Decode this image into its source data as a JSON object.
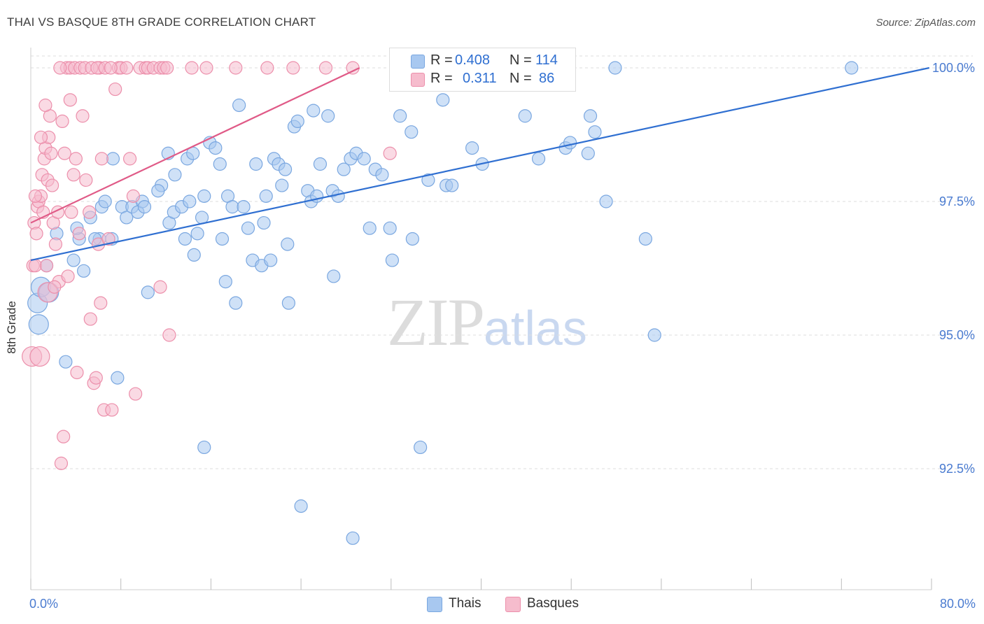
{
  "title": "THAI VS BASQUE 8TH GRADE CORRELATION CHART",
  "source": "Source: ZipAtlas.com",
  "watermark": {
    "zip": "ZIP",
    "atlas": "atlas"
  },
  "legend": {
    "r_label": "R =",
    "n_label": "N =",
    "rows": [
      {
        "name": "Thais",
        "r": "0.408",
        "n": "114",
        "color": "#a8c8f0",
        "border": "#7aa7e0"
      },
      {
        "name": "Basques",
        "r": "0.311",
        "n": "86",
        "color": "#f6bccd",
        "border": "#ec8fab"
      }
    ]
  },
  "chart_data": {
    "type": "scatter",
    "title": "THAI VS BASQUE 8TH GRADE CORRELATION CHART",
    "xlabel": "",
    "ylabel": "8th Grade",
    "xlim": [
      0,
      80
    ],
    "ylim": [
      90.1,
      100.3
    ],
    "x_tick_labels": [
      "0.0%",
      "80.0%"
    ],
    "y_ticks": [
      92.5,
      95.0,
      97.5,
      100.0
    ],
    "y_tick_labels": [
      "92.5%",
      "95.0%",
      "97.5%",
      "100.0%"
    ],
    "grid": true,
    "legend_position": "top-center",
    "series": [
      {
        "name": "Thais",
        "color": "#7aa7e0",
        "fill": "#a8c8f0",
        "trend": {
          "x0": 0,
          "y0": 96.4,
          "x1": 79.8,
          "y1": 100.0,
          "color": "#2f6fd1"
        },
        "points": [
          [
            0.6,
            95.6
          ],
          [
            0.7,
            95.2
          ],
          [
            0.9,
            95.9
          ],
          [
            1.6,
            95.8
          ],
          [
            1.4,
            96.3
          ],
          [
            3.1,
            94.5
          ],
          [
            3.8,
            96.4
          ],
          [
            2.3,
            96.9
          ],
          [
            4.3,
            96.8
          ],
          [
            4.7,
            96.2
          ],
          [
            4.1,
            97.0
          ],
          [
            5.3,
            97.2
          ],
          [
            6.1,
            96.8
          ],
          [
            5.7,
            96.8
          ],
          [
            6.3,
            97.4
          ],
          [
            6.6,
            97.5
          ],
          [
            7.2,
            96.8
          ],
          [
            7.3,
            98.3
          ],
          [
            8.1,
            97.4
          ],
          [
            8.5,
            97.2
          ],
          [
            9.0,
            97.4
          ],
          [
            9.5,
            97.3
          ],
          [
            9.9,
            97.5
          ],
          [
            10.1,
            97.4
          ],
          [
            10.4,
            95.8
          ],
          [
            12.2,
            98.4
          ],
          [
            11.6,
            97.8
          ],
          [
            11.3,
            97.7
          ],
          [
            12.3,
            97.1
          ],
          [
            12.8,
            98.0
          ],
          [
            12.7,
            97.3
          ],
          [
            13.4,
            97.4
          ],
          [
            13.7,
            96.8
          ],
          [
            13.9,
            98.3
          ],
          [
            14.4,
            98.4
          ],
          [
            14.1,
            97.5
          ],
          [
            14.5,
            96.5
          ],
          [
            14.8,
            96.9
          ],
          [
            15.2,
            97.2
          ],
          [
            15.4,
            97.6
          ],
          [
            15.9,
            98.6
          ],
          [
            16.4,
            98.5
          ],
          [
            16.8,
            98.2
          ],
          [
            17.0,
            96.8
          ],
          [
            17.3,
            96.0
          ],
          [
            17.5,
            97.6
          ],
          [
            17.9,
            97.4
          ],
          [
            18.2,
            95.6
          ],
          [
            18.5,
            99.3
          ],
          [
            18.9,
            97.4
          ],
          [
            19.3,
            97.0
          ],
          [
            19.7,
            96.4
          ],
          [
            20.0,
            98.2
          ],
          [
            20.5,
            96.3
          ],
          [
            20.7,
            97.1
          ],
          [
            20.9,
            97.6
          ],
          [
            21.3,
            96.4
          ],
          [
            21.6,
            98.3
          ],
          [
            22.0,
            98.2
          ],
          [
            22.3,
            97.8
          ],
          [
            22.6,
            98.1
          ],
          [
            22.8,
            96.7
          ],
          [
            22.9,
            95.6
          ],
          [
            23.4,
            98.9
          ],
          [
            23.7,
            99.0
          ],
          [
            24.6,
            97.7
          ],
          [
            24.9,
            97.5
          ],
          [
            25.1,
            99.2
          ],
          [
            25.4,
            97.6
          ],
          [
            25.7,
            98.2
          ],
          [
            26.4,
            99.1
          ],
          [
            26.8,
            97.7
          ],
          [
            26.9,
            96.1
          ],
          [
            27.3,
            97.6
          ],
          [
            27.8,
            98.1
          ],
          [
            28.4,
            98.3
          ],
          [
            28.9,
            98.4
          ],
          [
            29.6,
            98.3
          ],
          [
            30.1,
            97.0
          ],
          [
            30.6,
            98.1
          ],
          [
            31.2,
            98.0
          ],
          [
            31.9,
            97.0
          ],
          [
            32.1,
            96.4
          ],
          [
            32.8,
            99.1
          ],
          [
            33.8,
            98.8
          ],
          [
            33.4,
            100.0
          ],
          [
            33.9,
            96.8
          ],
          [
            34.6,
            92.9
          ],
          [
            35.3,
            97.9
          ],
          [
            36.2,
            100.0
          ],
          [
            36.6,
            99.4
          ],
          [
            36.9,
            97.8
          ],
          [
            37.4,
            97.8
          ],
          [
            38.4,
            100.0
          ],
          [
            39.2,
            98.5
          ],
          [
            39.6,
            100.0
          ],
          [
            40.1,
            98.2
          ],
          [
            41.4,
            100.0
          ],
          [
            43.9,
            99.1
          ],
          [
            45.1,
            98.3
          ],
          [
            47.5,
            98.5
          ],
          [
            47.9,
            98.6
          ],
          [
            49.7,
            99.1
          ],
          [
            49.5,
            98.4
          ],
          [
            50.1,
            98.8
          ],
          [
            51.9,
            100.0
          ],
          [
            51.1,
            97.5
          ],
          [
            54.6,
            96.8
          ],
          [
            55.4,
            95.0
          ],
          [
            72.9,
            100.0
          ],
          [
            15.4,
            92.9
          ],
          [
            24.0,
            91.8
          ],
          [
            28.6,
            91.2
          ],
          [
            7.7,
            94.2
          ]
        ]
      },
      {
        "name": "Basques",
        "color": "#ec8fab",
        "fill": "#f6bccd",
        "trend": {
          "x0": 0,
          "y0": 97.1,
          "x1": 29.2,
          "y1": 100.0,
          "color": "#e05a87"
        },
        "points": [
          [
            0.2,
            96.3
          ],
          [
            0.4,
            96.3
          ],
          [
            0.3,
            97.1
          ],
          [
            0.5,
            96.9
          ],
          [
            0.6,
            97.4
          ],
          [
            0.7,
            97.5
          ],
          [
            0.9,
            97.6
          ],
          [
            1.1,
            97.3
          ],
          [
            1.0,
            98.0
          ],
          [
            1.2,
            98.3
          ],
          [
            1.3,
            98.5
          ],
          [
            1.5,
            97.9
          ],
          [
            1.6,
            98.7
          ],
          [
            1.8,
            98.4
          ],
          [
            1.9,
            97.8
          ],
          [
            1.7,
            99.1
          ],
          [
            1.4,
            96.3
          ],
          [
            2.0,
            97.1
          ],
          [
            2.2,
            96.7
          ],
          [
            2.4,
            97.3
          ],
          [
            2.5,
            96.0
          ],
          [
            2.8,
            99.0
          ],
          [
            3.0,
            98.4
          ],
          [
            3.3,
            96.1
          ],
          [
            3.5,
            99.4
          ],
          [
            3.8,
            98.0
          ],
          [
            4.0,
            98.3
          ],
          [
            4.3,
            96.9
          ],
          [
            4.6,
            99.1
          ],
          [
            4.9,
            97.9
          ],
          [
            5.2,
            97.3
          ],
          [
            5.3,
            95.3
          ],
          [
            5.6,
            94.1
          ],
          [
            5.8,
            94.2
          ],
          [
            6.0,
            96.7
          ],
          [
            6.2,
            95.6
          ],
          [
            6.5,
            93.6
          ],
          [
            6.1,
            100.0
          ],
          [
            6.3,
            98.3
          ],
          [
            6.9,
            96.8
          ],
          [
            7.2,
            93.6
          ],
          [
            7.5,
            99.6
          ],
          [
            7.8,
            100.0
          ],
          [
            8.0,
            100.0
          ],
          [
            8.5,
            100.0
          ],
          [
            8.8,
            98.3
          ],
          [
            9.1,
            97.6
          ],
          [
            9.3,
            93.9
          ],
          [
            9.7,
            100.0
          ],
          [
            10.2,
            100.0
          ],
          [
            10.4,
            100.0
          ],
          [
            10.9,
            100.0
          ],
          [
            11.5,
            100.0
          ],
          [
            11.8,
            100.0
          ],
          [
            12.1,
            100.0
          ],
          [
            3.2,
            100.0
          ],
          [
            3.5,
            100.0
          ],
          [
            3.9,
            100.0
          ],
          [
            4.4,
            100.0
          ],
          [
            4.8,
            100.0
          ],
          [
            5.4,
            100.0
          ],
          [
            5.9,
            100.0
          ],
          [
            6.6,
            100.0
          ],
          [
            7.1,
            100.0
          ],
          [
            2.6,
            100.0
          ],
          [
            0.1,
            94.6
          ],
          [
            0.8,
            94.6
          ],
          [
            1.5,
            95.8
          ],
          [
            2.1,
            95.9
          ],
          [
            2.9,
            93.1
          ],
          [
            2.7,
            92.6
          ],
          [
            3.6,
            97.3
          ],
          [
            4.1,
            94.3
          ],
          [
            11.5,
            95.9
          ],
          [
            12.3,
            95.0
          ],
          [
            14.3,
            100.0
          ],
          [
            15.6,
            100.0
          ],
          [
            18.2,
            100.0
          ],
          [
            21.0,
            100.0
          ],
          [
            23.3,
            100.0
          ],
          [
            26.2,
            100.0
          ],
          [
            28.6,
            100.0
          ],
          [
            31.9,
            98.4
          ],
          [
            0.4,
            97.6
          ],
          [
            0.9,
            98.7
          ],
          [
            1.3,
            99.3
          ]
        ]
      }
    ]
  }
}
